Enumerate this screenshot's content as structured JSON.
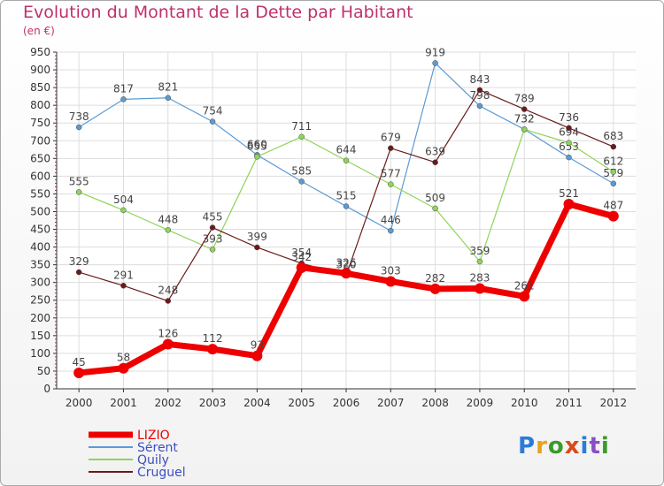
{
  "header": {
    "title": "Evolution du Montant de la Dette par Habitant",
    "subtitle": "(en €)"
  },
  "logo": {
    "text": "Proxiti",
    "colors": [
      "#2b7bd8",
      "#e8a21a",
      "#3a9a2a",
      "#d94a1a",
      "#2b7bd8",
      "#8a4fc2",
      "#3a9a2a"
    ]
  },
  "chart_data": {
    "type": "line",
    "x": [
      "2000",
      "2001",
      "2002",
      "2003",
      "2004",
      "2005",
      "2006",
      "2007",
      "2008",
      "2009",
      "2010",
      "2011",
      "2012"
    ],
    "ylim": [
      0,
      950
    ],
    "yticks": [
      0,
      50,
      100,
      150,
      200,
      250,
      300,
      350,
      400,
      450,
      500,
      550,
      600,
      650,
      700,
      750,
      800,
      850,
      900,
      950
    ],
    "grid": true,
    "legend": "bottom-left",
    "series": [
      {
        "name": "LIZIO",
        "color": "#ee0000",
        "width": 7,
        "values": [
          45,
          58,
          126,
          112,
          93,
          342,
          326,
          303,
          282,
          283,
          261,
          521,
          487
        ]
      },
      {
        "name": "Sérent",
        "color": "#5b9bd5",
        "width": 1.2,
        "values": [
          738,
          817,
          821,
          754,
          660,
          585,
          515,
          446,
          919,
          798,
          732,
          653,
          579
        ]
      },
      {
        "name": "Quily",
        "color": "#8fd45a",
        "width": 1.2,
        "values": [
          555,
          504,
          448,
          393,
          655,
          711,
          644,
          577,
          509,
          359,
          732,
          694,
          612
        ]
      },
      {
        "name": "Cruguel",
        "color": "#6b1a1a",
        "width": 1.2,
        "values": [
          329,
          291,
          248,
          455,
          399,
          354,
          320,
          679,
          639,
          843,
          789,
          736,
          683
        ]
      }
    ]
  }
}
